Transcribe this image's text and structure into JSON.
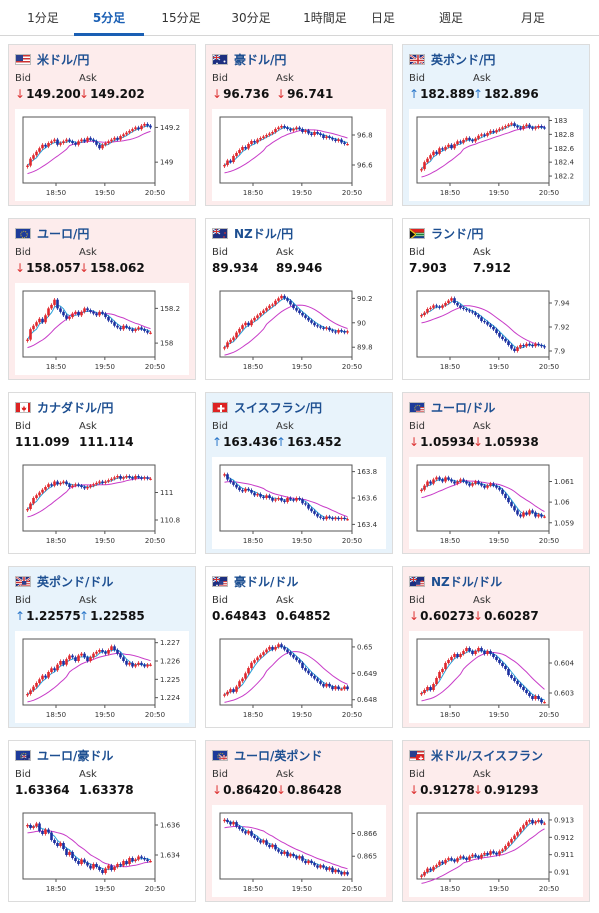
{
  "tabs": [
    {
      "label": "1分足",
      "active": false
    },
    {
      "label": "5分足",
      "active": true
    },
    {
      "label": "15分足",
      "active": false
    },
    {
      "label": "30分足",
      "active": false
    },
    {
      "label": "1時間足",
      "active": false
    },
    {
      "label": "日足",
      "active": false
    },
    {
      "label": "週足",
      "active": false
    },
    {
      "label": "月足",
      "active": false
    }
  ],
  "labels": {
    "bid": "Bid",
    "ask": "Ask"
  },
  "colors": {
    "accent": "#1a5fb4",
    "down": "#d33333",
    "up": "#2a76c9",
    "candle_up": "#e0282e",
    "candle_down": "#1c2fa0",
    "ma_short": "#2aa0d8",
    "ma_long": "#c83cc8"
  },
  "pairs": [
    {
      "name": "米ドル/円",
      "flag": "us-flag-icon",
      "bid": "149.200",
      "ask": "149.202",
      "dir": "down",
      "chart_data": {
        "type": "candlestick",
        "x_ticks": [
          "18:50",
          "19:50",
          "20:50"
        ],
        "y_ticks": [
          "149.2",
          "149"
        ],
        "ylim": [
          148.88,
          149.26
        ],
        "close": [
          148.98,
          149.02,
          149.04,
          149.06,
          149.08,
          149.1,
          149.09,
          149.11,
          149.12,
          149.13,
          149.1,
          149.11,
          149.12,
          149.13,
          149.12,
          149.11,
          149.1,
          149.12,
          149.13,
          149.12,
          149.14,
          149.13,
          149.12,
          149.1,
          149.08,
          149.1,
          149.11,
          149.12,
          149.13,
          149.14,
          149.13,
          149.15,
          149.16,
          149.17,
          149.18,
          149.19,
          149.2,
          149.19,
          149.21,
          149.22,
          149.21,
          149.2
        ]
      }
    },
    {
      "name": "豪ドル/円",
      "flag": "au-flag-icon",
      "bid": "96.736",
      "ask": "96.741",
      "dir": "down",
      "chart_data": {
        "type": "candlestick",
        "x_ticks": [
          "18:50",
          "19:50",
          "20:50"
        ],
        "y_ticks": [
          "96.8",
          "96.6"
        ],
        "ylim": [
          96.48,
          96.92
        ],
        "close": [
          96.6,
          96.63,
          96.62,
          96.66,
          96.68,
          96.7,
          96.72,
          96.71,
          96.74,
          96.76,
          96.75,
          96.77,
          96.78,
          96.79,
          96.8,
          96.81,
          96.82,
          96.84,
          96.85,
          96.86,
          96.85,
          96.84,
          96.83,
          96.84,
          96.85,
          96.84,
          96.82,
          96.83,
          96.81,
          96.8,
          96.82,
          96.81,
          96.8,
          96.78,
          96.79,
          96.78,
          96.77,
          96.76,
          96.77,
          96.75,
          96.74,
          96.74
        ]
      }
    },
    {
      "name": "英ポンド/円",
      "flag": "gb-flag-icon",
      "bid": "182.889",
      "ask": "182.896",
      "dir": "up",
      "chart_data": {
        "type": "candlestick",
        "x_ticks": [
          "18:50",
          "19:50",
          "20:50"
        ],
        "y_ticks": [
          "183",
          "182.8",
          "182.6",
          "182.4",
          "182.2"
        ],
        "ylim": [
          182.1,
          183.05
        ],
        "close": [
          182.3,
          182.4,
          182.45,
          182.5,
          182.55,
          182.52,
          182.6,
          182.58,
          182.62,
          182.65,
          182.6,
          182.66,
          182.7,
          182.68,
          182.72,
          182.75,
          182.72,
          182.7,
          182.74,
          182.78,
          182.8,
          182.78,
          182.82,
          182.85,
          182.83,
          182.86,
          182.88,
          182.9,
          182.92,
          182.94,
          182.96,
          182.92,
          182.9,
          182.88,
          182.92,
          182.94,
          182.9,
          182.88,
          182.9,
          182.92,
          182.9,
          182.89
        ]
      }
    },
    {
      "name": "ユーロ/円",
      "flag": "eu-flag-icon",
      "bid": "158.057",
      "ask": "158.062",
      "dir": "down",
      "chart_data": {
        "type": "candlestick",
        "x_ticks": [
          "18:50",
          "19:50",
          "20:50"
        ],
        "y_ticks": [
          "158.2",
          "158"
        ],
        "ylim": [
          157.92,
          158.3
        ],
        "close": [
          158.02,
          158.08,
          158.1,
          158.12,
          158.14,
          158.12,
          158.16,
          158.2,
          158.22,
          158.25,
          158.2,
          158.18,
          158.16,
          158.14,
          158.15,
          158.17,
          158.18,
          158.16,
          158.18,
          158.2,
          158.19,
          158.18,
          158.17,
          158.16,
          158.18,
          158.17,
          158.15,
          158.13,
          158.12,
          158.1,
          158.09,
          158.08,
          158.1,
          158.09,
          158.08,
          158.07,
          158.08,
          158.09,
          158.08,
          158.07,
          158.06,
          158.06
        ]
      }
    },
    {
      "name": "NZドル/円",
      "flag": "nz-flag-icon",
      "bid": "89.934",
      "ask": "89.946",
      "dir": "flat",
      "chart_data": {
        "type": "candlestick",
        "x_ticks": [
          "18:50",
          "19:50",
          "20:50"
        ],
        "y_ticks": [
          "90.2",
          "90",
          "89.8"
        ],
        "ylim": [
          89.72,
          90.26
        ],
        "close": [
          89.8,
          89.84,
          89.86,
          89.88,
          89.92,
          89.95,
          89.98,
          90.0,
          89.98,
          90.02,
          90.04,
          90.06,
          90.08,
          90.1,
          90.12,
          90.14,
          90.15,
          90.18,
          90.2,
          90.22,
          90.2,
          90.18,
          90.15,
          90.12,
          90.1,
          90.08,
          90.06,
          90.04,
          90.02,
          90.0,
          89.98,
          89.97,
          89.96,
          89.95,
          89.96,
          89.94,
          89.93,
          89.92,
          89.94,
          89.93,
          89.92,
          89.93
        ]
      }
    },
    {
      "name": "ランド/円",
      "flag": "za-flag-icon",
      "bid": "7.903",
      "ask": "7.912",
      "dir": "flat",
      "chart_data": {
        "type": "candlestick",
        "x_ticks": [
          "18:50",
          "19:50",
          "20:50"
        ],
        "y_ticks": [
          "7.94",
          "7.92",
          "7.9"
        ],
        "ylim": [
          7.895,
          7.95
        ],
        "close": [
          7.93,
          7.932,
          7.935,
          7.936,
          7.938,
          7.937,
          7.936,
          7.938,
          7.94,
          7.942,
          7.944,
          7.94,
          7.938,
          7.936,
          7.935,
          7.934,
          7.933,
          7.932,
          7.93,
          7.928,
          7.925,
          7.924,
          7.922,
          7.92,
          7.918,
          7.915,
          7.912,
          7.91,
          7.908,
          7.905,
          7.902,
          7.9,
          7.903,
          7.905,
          7.904,
          7.906,
          7.905,
          7.904,
          7.906,
          7.905,
          7.904,
          7.903
        ]
      }
    },
    {
      "name": "カナダドル/円",
      "flag": "ca-flag-icon",
      "bid": "111.099",
      "ask": "111.114",
      "dir": "flat",
      "chart_data": {
        "type": "candlestick",
        "x_ticks": [
          "18:50",
          "19:50",
          "20:50"
        ],
        "y_ticks": [
          "111",
          "110.8"
        ],
        "ylim": [
          110.72,
          111.2
        ],
        "close": [
          110.88,
          110.92,
          110.96,
          110.98,
          111.0,
          111.02,
          111.04,
          111.06,
          111.05,
          111.08,
          111.06,
          111.07,
          111.08,
          111.06,
          111.04,
          111.05,
          111.06,
          111.05,
          111.04,
          111.03,
          111.04,
          111.05,
          111.06,
          111.07,
          111.08,
          111.07,
          111.08,
          111.09,
          111.1,
          111.11,
          111.12,
          111.1,
          111.11,
          111.12,
          111.11,
          111.1,
          111.12,
          111.11,
          111.1,
          111.11,
          111.1,
          111.1
        ]
      }
    },
    {
      "name": "スイスフラン/円",
      "flag": "ch-flag-icon",
      "bid": "163.436",
      "ask": "163.452",
      "dir": "up",
      "chart_data": {
        "type": "candlestick",
        "x_ticks": [
          "18:50",
          "19:50",
          "20:50"
        ],
        "y_ticks": [
          "163.8",
          "163.6",
          "163.4"
        ],
        "ylim": [
          163.35,
          163.85
        ],
        "close": [
          163.78,
          163.74,
          163.72,
          163.7,
          163.68,
          163.66,
          163.65,
          163.67,
          163.66,
          163.64,
          163.62,
          163.63,
          163.61,
          163.6,
          163.62,
          163.6,
          163.58,
          163.59,
          163.6,
          163.58,
          163.57,
          163.6,
          163.59,
          163.58,
          163.6,
          163.59,
          163.56,
          163.55,
          163.52,
          163.5,
          163.48,
          163.46,
          163.45,
          163.44,
          163.46,
          163.45,
          163.44,
          163.45,
          163.44,
          163.45,
          163.44,
          163.44
        ]
      }
    },
    {
      "name": "ユーロ/ドル",
      "flag": "eu-us-flag-icon",
      "bid": "1.05934",
      "ask": "1.05938",
      "dir": "down",
      "chart_data": {
        "type": "candlestick",
        "x_ticks": [
          "18:50",
          "19:50",
          "20:50"
        ],
        "y_ticks": [
          "1.061",
          "1.06",
          "1.059"
        ],
        "ylim": [
          1.0586,
          1.0618
        ],
        "close": [
          1.0606,
          1.0608,
          1.061,
          1.0609,
          1.0611,
          1.0612,
          1.0611,
          1.061,
          1.0612,
          1.0611,
          1.061,
          1.0609,
          1.061,
          1.0611,
          1.061,
          1.0609,
          1.0608,
          1.0609,
          1.061,
          1.0609,
          1.0608,
          1.0607,
          1.0608,
          1.0609,
          1.0608,
          1.0607,
          1.0606,
          1.0604,
          1.0602,
          1.06,
          1.0598,
          1.0596,
          1.0594,
          1.0593,
          1.0595,
          1.0594,
          1.0596,
          1.0595,
          1.0593,
          1.0594,
          1.0593,
          1.0593
        ]
      }
    },
    {
      "name": "英ポンド/ドル",
      "flag": "gb-us-flag-icon",
      "bid": "1.22575",
      "ask": "1.22585",
      "dir": "up",
      "chart_data": {
        "type": "candlestick",
        "x_ticks": [
          "18:50",
          "19:50",
          "20:50"
        ],
        "y_ticks": [
          "1.227",
          "1.226",
          "1.225",
          "1.224"
        ],
        "ylim": [
          1.2236,
          1.2272
        ],
        "close": [
          1.2242,
          1.2244,
          1.2246,
          1.2248,
          1.225,
          1.2252,
          1.2251,
          1.2254,
          1.2256,
          1.2255,
          1.2258,
          1.226,
          1.2258,
          1.2261,
          1.2263,
          1.2262,
          1.226,
          1.2263,
          1.2264,
          1.2262,
          1.226,
          1.2262,
          1.2264,
          1.2265,
          1.2266,
          1.2265,
          1.2264,
          1.2266,
          1.2268,
          1.2266,
          1.2264,
          1.2262,
          1.226,
          1.2258,
          1.2259,
          1.2257,
          1.2258,
          1.2259,
          1.2258,
          1.2257,
          1.2258,
          1.2258
        ]
      }
    },
    {
      "name": "豪ドル/ドル",
      "flag": "au-us-flag-icon",
      "bid": "0.64843",
      "ask": "0.64852",
      "dir": "flat",
      "chart_data": {
        "type": "candlestick",
        "x_ticks": [
          "18:50",
          "19:50",
          "20:50"
        ],
        "y_ticks": [
          "0.65",
          "0.649",
          "0.648"
        ],
        "ylim": [
          0.6478,
          0.6503
        ],
        "close": [
          0.6482,
          0.6483,
          0.6484,
          0.6483,
          0.6485,
          0.6487,
          0.6488,
          0.649,
          0.6492,
          0.6494,
          0.6495,
          0.6496,
          0.6497,
          0.6498,
          0.6499,
          0.65,
          0.6499,
          0.65,
          0.6501,
          0.65,
          0.6499,
          0.6498,
          0.6497,
          0.6496,
          0.6495,
          0.6494,
          0.6492,
          0.6491,
          0.649,
          0.6489,
          0.6488,
          0.6487,
          0.6486,
          0.6485,
          0.6486,
          0.6485,
          0.6484,
          0.6485,
          0.6484,
          0.6484,
          0.6485,
          0.6484
        ]
      }
    },
    {
      "name": "NZドル/ドル",
      "flag": "nz-us-flag-icon",
      "bid": "0.60273",
      "ask": "0.60287",
      "dir": "down",
      "chart_data": {
        "type": "candlestick",
        "x_ticks": [
          "18:50",
          "19:50",
          "20:50"
        ],
        "y_ticks": [
          "0.604",
          "0.603"
        ],
        "ylim": [
          0.6026,
          0.6048
        ],
        "close": [
          0.603,
          0.6031,
          0.6032,
          0.6031,
          0.6033,
          0.6035,
          0.6037,
          0.6038,
          0.604,
          0.6041,
          0.6042,
          0.6043,
          0.6042,
          0.6043,
          0.6044,
          0.6045,
          0.6044,
          0.6043,
          0.6044,
          0.6045,
          0.6044,
          0.6043,
          0.6044,
          0.6043,
          0.6042,
          0.6041,
          0.604,
          0.6039,
          0.6038,
          0.6036,
          0.6035,
          0.6034,
          0.6033,
          0.6032,
          0.6031,
          0.603,
          0.6029,
          0.6028,
          0.6029,
          0.6028,
          0.6027,
          0.6027
        ]
      }
    },
    {
      "name": "ユーロ/豪ドル",
      "flag": "eu-au-flag-icon",
      "bid": "1.63364",
      "ask": "1.63378",
      "dir": "flat",
      "chart_data": {
        "type": "candlestick",
        "x_ticks": [
          "18:50",
          "19:50",
          "20:50"
        ],
        "y_ticks": [
          "1.636",
          "1.634"
        ],
        "ylim": [
          1.6324,
          1.6368
        ],
        "close": [
          1.636,
          1.6358,
          1.6359,
          1.6361,
          1.6356,
          1.6354,
          1.6357,
          1.6355,
          1.635,
          1.6348,
          1.6346,
          1.6348,
          1.6344,
          1.634,
          1.6342,
          1.6338,
          1.6336,
          1.6334,
          1.6337,
          1.6335,
          1.6333,
          1.6331,
          1.6334,
          1.6332,
          1.633,
          1.6328,
          1.6331,
          1.6333,
          1.633,
          1.6332,
          1.6334,
          1.6333,
          1.6336,
          1.6334,
          1.6338,
          1.6336,
          1.6337,
          1.6339,
          1.6338,
          1.6337,
          1.6336,
          1.6336
        ]
      }
    },
    {
      "name": "ユーロ/英ポンド",
      "flag": "eu-gb-flag-icon",
      "bid": "0.86420",
      "ask": "0.86428",
      "dir": "down",
      "chart_data": {
        "type": "candlestick",
        "x_ticks": [
          "18:50",
          "19:50",
          "20:50"
        ],
        "y_ticks": [
          "0.866",
          "0.865"
        ],
        "ylim": [
          0.864,
          0.8669
        ],
        "close": [
          0.8666,
          0.8665,
          0.8664,
          0.8665,
          0.8663,
          0.8662,
          0.8661,
          0.866,
          0.8661,
          0.8659,
          0.8658,
          0.8657,
          0.8656,
          0.8657,
          0.8655,
          0.8654,
          0.8655,
          0.8653,
          0.8652,
          0.8651,
          0.8652,
          0.865,
          0.8651,
          0.865,
          0.8649,
          0.865,
          0.8648,
          0.8647,
          0.8648,
          0.8647,
          0.8646,
          0.8645,
          0.8646,
          0.8645,
          0.8644,
          0.8645,
          0.8643,
          0.8644,
          0.8643,
          0.8642,
          0.8643,
          0.8642
        ]
      }
    },
    {
      "name": "米ドル/スイスフラン",
      "flag": "us-ch-flag-icon",
      "bid": "0.91278",
      "ask": "0.91293",
      "dir": "down",
      "chart_data": {
        "type": "candlestick",
        "x_ticks": [
          "18:50",
          "19:50",
          "20:50"
        ],
        "y_ticks": [
          "0.913",
          "0.912",
          "0.911",
          "0.91"
        ],
        "ylim": [
          0.9096,
          0.9134
        ],
        "close": [
          0.9098,
          0.91,
          0.9102,
          0.9101,
          0.9103,
          0.9104,
          0.9106,
          0.9105,
          0.9107,
          0.9108,
          0.9107,
          0.9106,
          0.9108,
          0.9109,
          0.9108,
          0.9107,
          0.9109,
          0.911,
          0.9109,
          0.9108,
          0.911,
          0.9111,
          0.911,
          0.9112,
          0.9111,
          0.911,
          0.9112,
          0.9113,
          0.9115,
          0.9117,
          0.9119,
          0.9121,
          0.9123,
          0.9125,
          0.9127,
          0.9129,
          0.913,
          0.9128,
          0.9129,
          0.913,
          0.9128,
          0.9128
        ]
      }
    }
  ]
}
